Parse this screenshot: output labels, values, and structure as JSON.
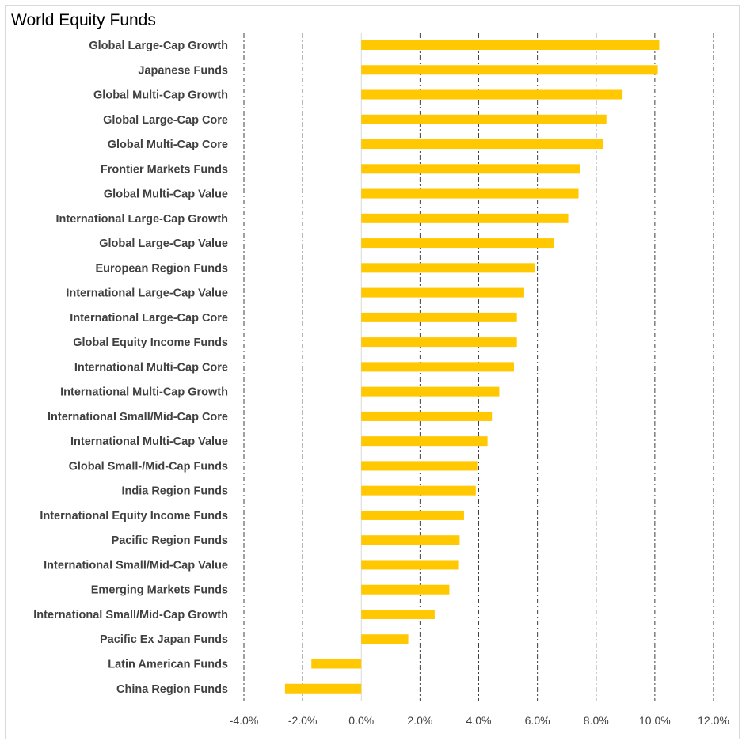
{
  "chart_data": {
    "type": "bar",
    "orientation": "horizontal",
    "title": "World Equity Funds",
    "categories": [
      "Global Large-Cap Growth",
      "Japanese Funds",
      "Global Multi-Cap Growth",
      "Global Large-Cap Core",
      "Global Multi-Cap Core",
      "Frontier Markets Funds",
      "Global Multi-Cap Value",
      "International Large-Cap Growth",
      "Global Large-Cap Value",
      "European Region Funds",
      "International Large-Cap Value",
      "International Large-Cap Core",
      "Global Equity Income Funds",
      "International Multi-Cap Core",
      "International Multi-Cap Growth",
      "International Small/Mid-Cap Core",
      "International Multi-Cap Value",
      "Global Small-/Mid-Cap Funds",
      "India Region Funds",
      "International Equity Income Funds",
      "Pacific Region Funds",
      "International Small/Mid-Cap Value",
      "Emerging Markets Funds",
      "International Small/Mid-Cap Growth",
      "Pacific Ex Japan Funds",
      "Latin American Funds",
      "China Region Funds"
    ],
    "values": [
      10.15,
      10.1,
      8.9,
      8.35,
      8.25,
      7.45,
      7.4,
      7.05,
      6.55,
      5.9,
      5.55,
      5.3,
      5.3,
      5.2,
      4.7,
      4.45,
      4.3,
      3.95,
      3.9,
      3.5,
      3.35,
      3.3,
      3.0,
      2.5,
      1.6,
      -1.7,
      -2.6
    ],
    "xlim": [
      -4,
      12
    ],
    "xticks": [
      -4,
      -2,
      0,
      2,
      4,
      6,
      8,
      10,
      12
    ],
    "xtick_labels": [
      "-4.0%",
      "-2.0%",
      "0.0%",
      "2.0%",
      "4.0%",
      "6.0%",
      "8.0%",
      "10.0%",
      "12.0%"
    ],
    "grid": "vertical dashed",
    "bar_color": "#FFC800",
    "grid_color": "#404040",
    "legend": "none"
  }
}
